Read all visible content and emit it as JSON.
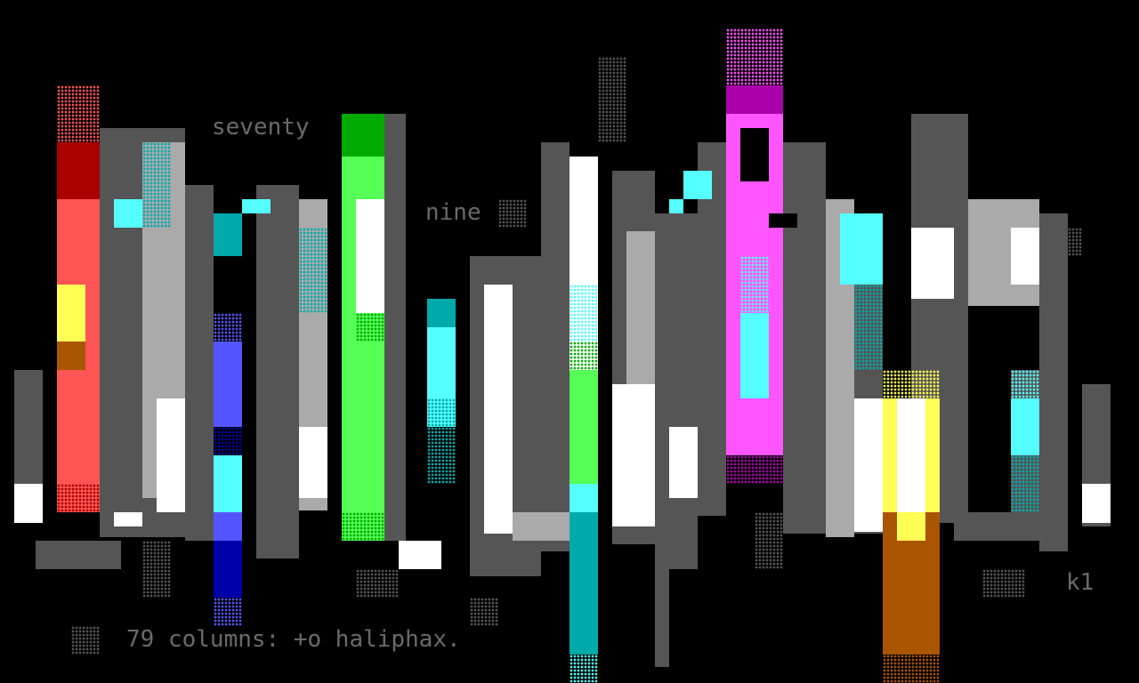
{
  "artwork": {
    "words": {
      "top_left": "seventy",
      "middle": "nine",
      "signature_right": "k1",
      "caption": "79 columns: +o haliphax."
    },
    "palette": {
      "background": "#000000",
      "dark_gray": "#555555",
      "light_gray": "#aaaaaa",
      "white": "#ffffff",
      "red": "#aa0000",
      "light_red": "#ff5555",
      "yellow": "#ffff55",
      "blue": "#5555ff",
      "dark_blue": "#0000aa",
      "cyan": "#55ffff",
      "dark_cyan": "#00aaaa",
      "green": "#55ff55",
      "dark_green": "#00aa00",
      "magenta": "#ff55ff",
      "dark_magenta": "#aa00aa",
      "brown": "#aa5500"
    }
  }
}
